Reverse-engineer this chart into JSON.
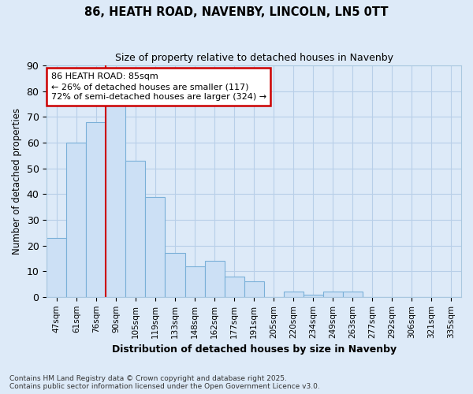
{
  "title": "86, HEATH ROAD, NAVENBY, LINCOLN, LN5 0TT",
  "subtitle": "Size of property relative to detached houses in Navenby",
  "xlabel": "Distribution of detached houses by size in Navenby",
  "ylabel": "Number of detached properties",
  "footnote1": "Contains HM Land Registry data © Crown copyright and database right 2025.",
  "footnote2": "Contains public sector information licensed under the Open Government Licence v3.0.",
  "categories": [
    "47sqm",
    "61sqm",
    "76sqm",
    "90sqm",
    "105sqm",
    "119sqm",
    "133sqm",
    "148sqm",
    "162sqm",
    "177sqm",
    "191sqm",
    "205sqm",
    "220sqm",
    "234sqm",
    "249sqm",
    "263sqm",
    "277sqm",
    "292sqm",
    "306sqm",
    "321sqm",
    "335sqm"
  ],
  "values": [
    23,
    60,
    68,
    75,
    53,
    39,
    17,
    12,
    14,
    8,
    6,
    0,
    2,
    1,
    2,
    2,
    0,
    0,
    0,
    0,
    0
  ],
  "bar_color": "#cce0f5",
  "bar_edge_color": "#7ab0d8",
  "background_color": "#ddeaf8",
  "grid_color": "#b8cfe8",
  "annotation_text": "86 HEATH ROAD: 85sqm\n← 26% of detached houses are smaller (117)\n72% of semi-detached houses are larger (324) →",
  "annotation_box_color": "#ffffff",
  "annotation_box_edge": "#cc0000",
  "red_line_x": 2.5,
  "ylim": [
    0,
    90
  ],
  "yticks": [
    0,
    10,
    20,
    30,
    40,
    50,
    60,
    70,
    80,
    90
  ]
}
